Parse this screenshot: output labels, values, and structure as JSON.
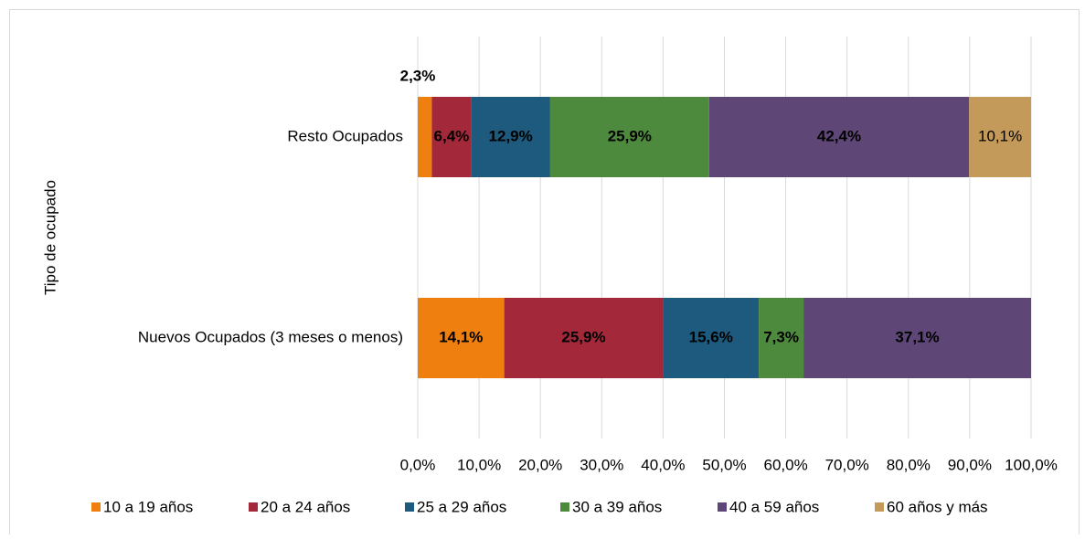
{
  "chart_data": {
    "type": "stacked-barh",
    "y_label": "Tipo de ocupado",
    "categories": [
      "Resto Ocupados",
      "Nuevos Ocupados (3 meses o menos)"
    ],
    "series": [
      {
        "name": "10 a 19 años",
        "color": "#ef7f0f",
        "values": [
          2.3,
          14.1
        ],
        "value_labels": [
          "2,3%",
          "14,1%"
        ]
      },
      {
        "name": "20 a 24 años",
        "color": "#a3293a",
        "values": [
          6.4,
          25.9
        ],
        "value_labels": [
          "6,4%",
          "25,9%"
        ]
      },
      {
        "name": "25 a 29 años",
        "color": "#1d5a7d",
        "values": [
          12.9,
          15.6
        ],
        "value_labels": [
          "12,9%",
          "15,6%"
        ]
      },
      {
        "name": "30 a 39 años",
        "color": "#4e8a3d",
        "values": [
          25.9,
          7.3
        ],
        "value_labels": [
          "25,9%",
          "7,3%"
        ]
      },
      {
        "name": "40 a 59 años",
        "color": "#5e4676",
        "values": [
          42.4,
          37.1
        ],
        "value_labels": [
          "42,4%",
          "37,1%"
        ]
      },
      {
        "name": "60 años y más",
        "color": "#c49a5a",
        "values": [
          10.1,
          null
        ],
        "value_labels": [
          "10,1%",
          null
        ]
      }
    ],
    "xlim": [
      0,
      100
    ],
    "xticks": [
      {
        "value": 0,
        "label": "0,0%"
      },
      {
        "value": 10,
        "label": "10,0%"
      },
      {
        "value": 20,
        "label": "20,0%"
      },
      {
        "value": 30,
        "label": "30,0%"
      },
      {
        "value": 40,
        "label": "40,0%"
      },
      {
        "value": 50,
        "label": "50,0%"
      },
      {
        "value": 60,
        "label": "60,0%"
      },
      {
        "value": 70,
        "label": "70,0%"
      },
      {
        "value": 80,
        "label": "80,0%"
      },
      {
        "value": 90,
        "label": "90,0%"
      },
      {
        "value": 100,
        "label": "100,0%"
      }
    ],
    "grid": true,
    "legend": "bottom"
  }
}
